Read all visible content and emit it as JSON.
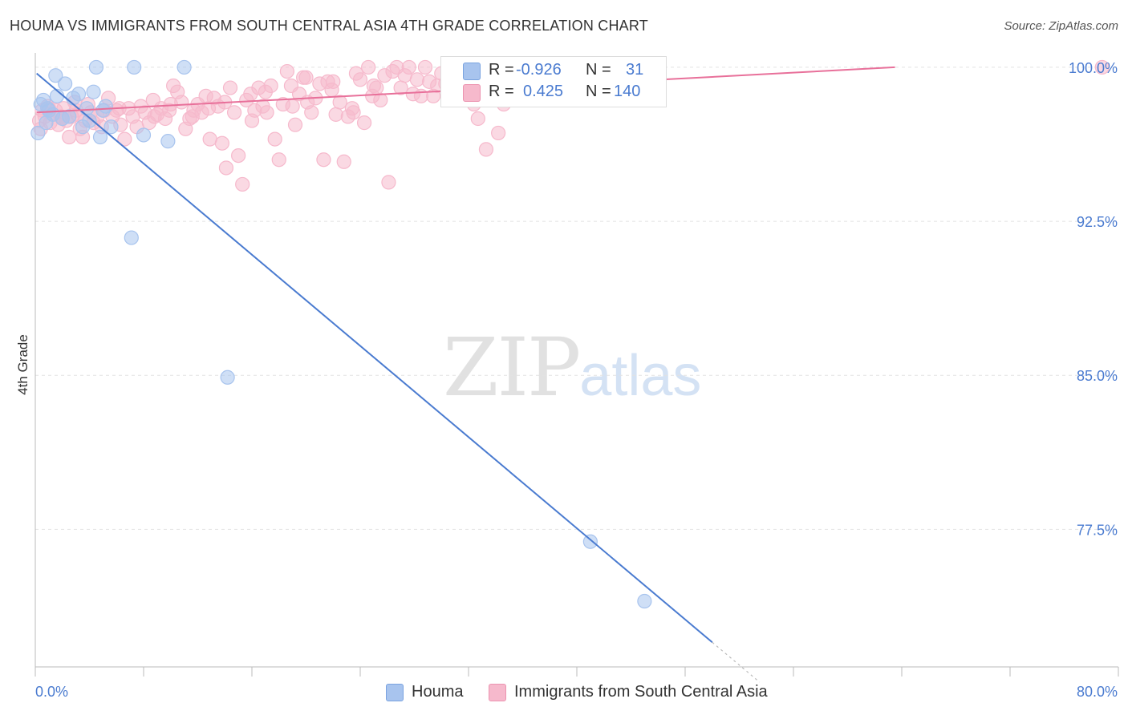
{
  "title": "HOUMA VS IMMIGRANTS FROM SOUTH CENTRAL ASIA 4TH GRADE CORRELATION CHART",
  "source": "Source: ZipAtlas.com",
  "watermark": {
    "zip": "ZIP",
    "atlas": "atlas"
  },
  "legend": {
    "rows": [
      {
        "r_label": "R =",
        "r_value": "-0.926",
        "n_label": "N =",
        "n_value": "31",
        "color": "#a8c4ee"
      },
      {
        "r_label": "R =",
        "r_value": "0.425",
        "n_label": "N =",
        "n_value": "140",
        "color": "#f6b9cc"
      }
    ]
  },
  "bottom_legend": [
    {
      "label": "Houma",
      "color": "#a8c4ee"
    },
    {
      "label": "Immigrants from South Central Asia",
      "color": "#f6b9cc"
    }
  ],
  "chart_data": {
    "type": "scatter",
    "title": "HOUMA VS IMMIGRANTS FROM SOUTH CENTRAL ASIA 4TH GRADE CORRELATION CHART",
    "xlabel": "",
    "ylabel": "4th Grade",
    "xlim": [
      0,
      80
    ],
    "ylim": [
      70.8,
      100.7
    ],
    "x_tick_labels": [
      "0.0%",
      "80.0%"
    ],
    "y_ticks": [
      100.0,
      92.5,
      85.0,
      77.5
    ],
    "y_tick_labels": [
      "100.0%",
      "92.5%",
      "85.0%",
      "77.5%"
    ],
    "grid": true,
    "series": [
      {
        "name": "Houma",
        "color": "#4a7bd0",
        "fill": "#a8c4ee",
        "R": -0.926,
        "N": 31,
        "trend": {
          "x0": 0.1,
          "y0": 99.7,
          "x1": 50.0,
          "y1": 72.0,
          "dash_to_x": 53.5
        },
        "points": [
          [
            0.2,
            96.8
          ],
          [
            0.4,
            98.2
          ],
          [
            0.6,
            98.4
          ],
          [
            0.9,
            98.0
          ],
          [
            1.3,
            97.7
          ],
          [
            1.5,
            99.6
          ],
          [
            1.6,
            98.6
          ],
          [
            2.0,
            97.5
          ],
          [
            2.2,
            99.2
          ],
          [
            2.8,
            98.5
          ],
          [
            3.2,
            98.7
          ],
          [
            3.5,
            97.1
          ],
          [
            4.0,
            97.4
          ],
          [
            4.3,
            98.8
          ],
          [
            4.5,
            100.0
          ],
          [
            4.8,
            96.6
          ],
          [
            5.2,
            98.1
          ],
          [
            5.6,
            97.1
          ],
          [
            7.3,
            100.0
          ],
          [
            8.0,
            96.7
          ],
          [
            9.8,
            96.4
          ],
          [
            11.0,
            100.0
          ],
          [
            7.1,
            91.7
          ],
          [
            14.2,
            84.9
          ],
          [
            41.0,
            76.9
          ],
          [
            45.0,
            74.0
          ],
          [
            1.0,
            97.9
          ],
          [
            2.5,
            97.6
          ],
          [
            3.8,
            98.0
          ],
          [
            0.8,
            97.3
          ],
          [
            5.0,
            97.9
          ]
        ]
      },
      {
        "name": "Immigrants from South Central Asia",
        "color": "#e8709a",
        "fill": "#f6b9cc",
        "R": 0.425,
        "N": 140,
        "trend": {
          "x0": 0.1,
          "y0": 97.8,
          "x1": 63.5,
          "y1": 100.0
        },
        "points": [
          [
            0.3,
            97.4
          ],
          [
            0.5,
            97.9
          ],
          [
            0.7,
            97.6
          ],
          [
            0.9,
            98.1
          ],
          [
            1.1,
            97.3
          ],
          [
            1.3,
            97.7
          ],
          [
            1.5,
            97.9
          ],
          [
            1.7,
            97.2
          ],
          [
            1.9,
            97.6
          ],
          [
            2.1,
            98.0
          ],
          [
            2.3,
            97.4
          ],
          [
            2.5,
            96.6
          ],
          [
            2.7,
            97.6
          ],
          [
            2.9,
            98.3
          ],
          [
            3.1,
            97.7
          ],
          [
            3.3,
            97.0
          ],
          [
            3.5,
            96.6
          ],
          [
            3.7,
            97.4
          ],
          [
            3.9,
            98.2
          ],
          [
            4.1,
            97.8
          ],
          [
            4.3,
            97.3
          ],
          [
            4.6,
            97.6
          ],
          [
            4.9,
            97.1
          ],
          [
            5.1,
            97.9
          ],
          [
            5.4,
            98.5
          ],
          [
            5.7,
            97.6
          ],
          [
            6.0,
            97.9
          ],
          [
            6.3,
            97.2
          ],
          [
            6.6,
            96.5
          ],
          [
            6.9,
            98.0
          ],
          [
            7.2,
            97.6
          ],
          [
            7.5,
            97.1
          ],
          [
            7.8,
            98.1
          ],
          [
            8.1,
            97.8
          ],
          [
            8.4,
            97.3
          ],
          [
            8.7,
            98.4
          ],
          [
            9.0,
            97.7
          ],
          [
            9.3,
            98.0
          ],
          [
            9.6,
            97.5
          ],
          [
            9.9,
            97.9
          ],
          [
            10.2,
            99.1
          ],
          [
            10.5,
            98.8
          ],
          [
            10.8,
            98.3
          ],
          [
            11.1,
            97.0
          ],
          [
            11.4,
            97.5
          ],
          [
            11.7,
            97.9
          ],
          [
            12.0,
            98.2
          ],
          [
            12.3,
            97.8
          ],
          [
            12.6,
            98.6
          ],
          [
            12.9,
            96.5
          ],
          [
            13.2,
            98.5
          ],
          [
            13.5,
            98.1
          ],
          [
            13.8,
            96.3
          ],
          [
            14.1,
            95.1
          ],
          [
            14.4,
            99.0
          ],
          [
            14.7,
            97.8
          ],
          [
            15.0,
            95.7
          ],
          [
            15.3,
            94.3
          ],
          [
            15.6,
            98.4
          ],
          [
            15.9,
            98.7
          ],
          [
            16.2,
            97.9
          ],
          [
            16.5,
            99.0
          ],
          [
            16.8,
            98.1
          ],
          [
            17.1,
            97.8
          ],
          [
            17.4,
            99.1
          ],
          [
            17.7,
            96.5
          ],
          [
            18.0,
            95.5
          ],
          [
            18.3,
            98.2
          ],
          [
            18.6,
            99.8
          ],
          [
            18.9,
            99.1
          ],
          [
            19.2,
            97.2
          ],
          [
            19.5,
            98.7
          ],
          [
            19.8,
            99.5
          ],
          [
            20.1,
            98.3
          ],
          [
            20.4,
            97.8
          ],
          [
            20.7,
            98.5
          ],
          [
            21.0,
            99.2
          ],
          [
            21.3,
            95.5
          ],
          [
            21.6,
            99.3
          ],
          [
            21.9,
            98.9
          ],
          [
            22.2,
            97.7
          ],
          [
            22.5,
            98.3
          ],
          [
            22.8,
            95.4
          ],
          [
            23.1,
            97.6
          ],
          [
            23.4,
            98.0
          ],
          [
            23.7,
            99.7
          ],
          [
            24.0,
            99.4
          ],
          [
            24.3,
            97.3
          ],
          [
            24.6,
            100.0
          ],
          [
            24.9,
            98.6
          ],
          [
            25.2,
            99.0
          ],
          [
            25.5,
            98.4
          ],
          [
            25.8,
            99.6
          ],
          [
            26.1,
            94.4
          ],
          [
            26.4,
            99.8
          ],
          [
            26.7,
            100.0
          ],
          [
            27.0,
            99.0
          ],
          [
            27.3,
            99.6
          ],
          [
            27.6,
            100.0
          ],
          [
            27.9,
            98.7
          ],
          [
            28.2,
            99.4
          ],
          [
            28.5,
            98.6
          ],
          [
            28.8,
            100.0
          ],
          [
            29.1,
            99.3
          ],
          [
            29.4,
            98.6
          ],
          [
            29.7,
            99.1
          ],
          [
            30.0,
            99.7
          ],
          [
            30.3,
            99.2
          ],
          [
            30.6,
            98.5
          ],
          [
            30.9,
            99.7
          ],
          [
            31.2,
            98.9
          ],
          [
            31.5,
            100.0
          ],
          [
            31.8,
            99.7
          ],
          [
            32.1,
            99.3
          ],
          [
            32.4,
            98.2
          ],
          [
            32.7,
            97.5
          ],
          [
            33.0,
            99.6
          ],
          [
            33.3,
            96.0
          ],
          [
            33.6,
            99.9
          ],
          [
            34.2,
            96.8
          ],
          [
            34.6,
            98.2
          ],
          [
            35.0,
            100.0
          ],
          [
            78.8,
            100.0
          ],
          [
            0.4,
            97.0
          ],
          [
            1.0,
            98.0
          ],
          [
            2.0,
            97.5
          ],
          [
            3.0,
            97.9
          ],
          [
            6.2,
            98.0
          ],
          [
            8.8,
            97.6
          ],
          [
            10.0,
            98.2
          ],
          [
            11.6,
            97.6
          ],
          [
            12.8,
            98.0
          ],
          [
            14.0,
            98.3
          ],
          [
            16.0,
            97.4
          ],
          [
            17.0,
            98.8
          ],
          [
            19.0,
            98.1
          ],
          [
            20.0,
            99.5
          ],
          [
            22.0,
            99.3
          ],
          [
            23.5,
            97.8
          ],
          [
            25.0,
            99.1
          ]
        ]
      }
    ]
  }
}
